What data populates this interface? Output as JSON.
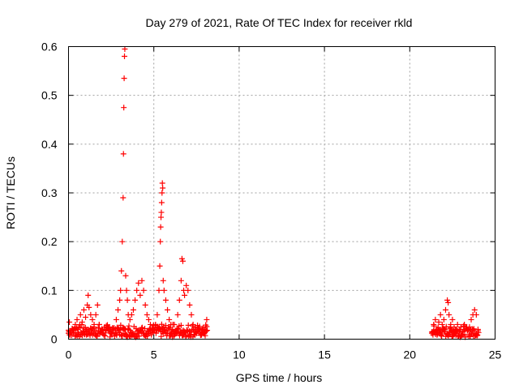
{
  "chart_data": {
    "type": "scatter",
    "title": "Day 279 of 2021, Rate Of TEC Index for receiver rkld",
    "xlabel": "GPS time / hours",
    "ylabel": "ROTI / TECUs",
    "xlim": [
      0,
      25
    ],
    "ylim": [
      0,
      0.6
    ],
    "x_ticks": [
      "0",
      "5",
      "10",
      "15",
      "20",
      "25"
    ],
    "y_ticks": [
      "0",
      "0.1",
      "0.2",
      "0.3",
      "0.4",
      "0.5",
      "0.6"
    ],
    "grid": true,
    "marker": "+",
    "color": "#ff0000",
    "series": [
      {
        "name": "ROTI",
        "x": [
          0.0,
          0.05,
          0.3,
          0.4,
          0.5,
          0.6,
          0.7,
          0.8,
          0.9,
          1.0,
          1.1,
          1.15,
          1.2,
          1.3,
          1.4,
          1.5,
          1.6,
          1.7,
          1.8,
          2.0,
          2.2,
          2.4,
          2.6,
          2.8,
          2.9,
          3.0,
          3.05,
          3.1,
          3.15,
          3.2,
          3.22,
          3.24,
          3.26,
          3.28,
          3.3,
          3.35,
          3.4,
          3.45,
          3.5,
          3.6,
          3.7,
          3.8,
          3.9,
          4.0,
          4.1,
          4.2,
          4.3,
          4.4,
          4.5,
          4.6,
          4.7,
          4.8,
          4.9,
          5.0,
          5.1,
          5.2,
          5.3,
          5.35,
          5.38,
          5.4,
          5.42,
          5.44,
          5.46,
          5.48,
          5.5,
          5.52,
          5.55,
          5.6,
          5.7,
          5.8,
          5.9,
          6.0,
          6.1,
          6.2,
          6.4,
          6.5,
          6.6,
          6.65,
          6.7,
          6.75,
          6.8,
          6.9,
          7.0,
          7.1,
          7.2,
          7.3,
          7.4,
          7.6,
          7.8,
          8.0,
          8.1,
          21.3,
          21.4,
          21.5,
          21.6,
          21.7,
          21.8,
          21.9,
          22.0,
          22.1,
          22.2,
          22.25,
          22.3,
          22.4,
          22.5,
          22.6,
          22.7,
          22.8,
          22.9,
          23.0,
          23.2,
          23.4,
          23.5,
          23.6,
          23.7,
          23.8,
          23.9,
          24.0
        ],
        "y": [
          0.012,
          0.035,
          0.02,
          0.03,
          0.04,
          0.025,
          0.05,
          0.035,
          0.06,
          0.045,
          0.07,
          0.09,
          0.065,
          0.05,
          0.04,
          0.03,
          0.05,
          0.07,
          0.03,
          0.02,
          0.018,
          0.025,
          0.022,
          0.04,
          0.06,
          0.08,
          0.1,
          0.14,
          0.2,
          0.29,
          0.38,
          0.475,
          0.535,
          0.58,
          0.595,
          0.13,
          0.1,
          0.08,
          0.05,
          0.04,
          0.05,
          0.06,
          0.08,
          0.1,
          0.115,
          0.09,
          0.12,
          0.1,
          0.07,
          0.05,
          0.04,
          0.03,
          0.02,
          0.02,
          0.03,
          0.05,
          0.1,
          0.15,
          0.2,
          0.23,
          0.25,
          0.26,
          0.28,
          0.3,
          0.32,
          0.31,
          0.12,
          0.1,
          0.08,
          0.06,
          0.04,
          0.03,
          0.02,
          0.03,
          0.05,
          0.08,
          0.12,
          0.165,
          0.16,
          0.1,
          0.09,
          0.11,
          0.1,
          0.07,
          0.05,
          0.03,
          0.02,
          0.02,
          0.015,
          0.02,
          0.04,
          0.015,
          0.03,
          0.04,
          0.02,
          0.035,
          0.05,
          0.03,
          0.04,
          0.06,
          0.08,
          0.075,
          0.05,
          0.03,
          0.04,
          0.025,
          0.02,
          0.03,
          0.02,
          0.025,
          0.03,
          0.02,
          0.025,
          0.04,
          0.05,
          0.06,
          0.05,
          0.02
        ]
      }
    ],
    "bands": [
      {
        "x_range": [
          0.0,
          8.1
        ],
        "y_max": 0.025
      },
      {
        "x_range": [
          21.3,
          24.0
        ],
        "y_max": 0.022
      }
    ]
  }
}
